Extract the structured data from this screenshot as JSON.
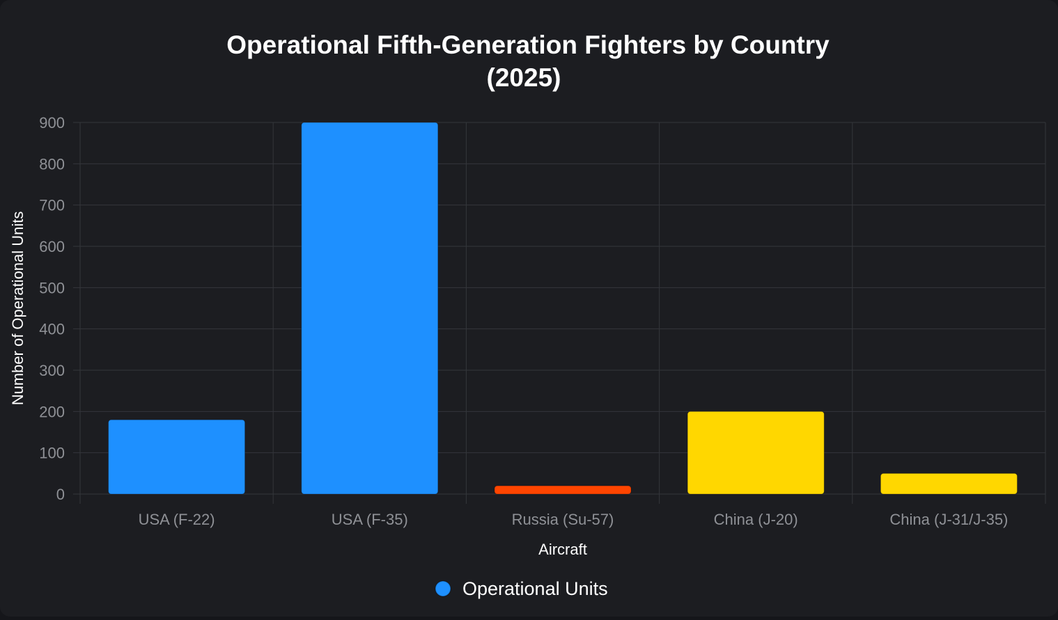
{
  "chart_data": {
    "type": "bar",
    "title": [
      "Operational Fifth-Generation Fighters by Country",
      "(2025)"
    ],
    "xlabel": "Aircraft",
    "ylabel": "Number of Operational Units",
    "categories": [
      "USA (F-22)",
      "USA (F-35)",
      "Russia (Su-57)",
      "China (J-20)",
      "China (J-31/J-35)"
    ],
    "series": [
      {
        "name": "Operational Units",
        "values": [
          180,
          900,
          20,
          200,
          50
        ],
        "colors": [
          "#1e90ff",
          "#1e90ff",
          "#ff4500",
          "#ffd700",
          "#ffd700"
        ]
      }
    ],
    "ylim": [
      0,
      900
    ],
    "yticks": [
      0,
      100,
      200,
      300,
      400,
      500,
      600,
      700,
      800,
      900
    ],
    "grid": true,
    "legend": {
      "position": "bottom",
      "color": "#1e90ff"
    }
  }
}
